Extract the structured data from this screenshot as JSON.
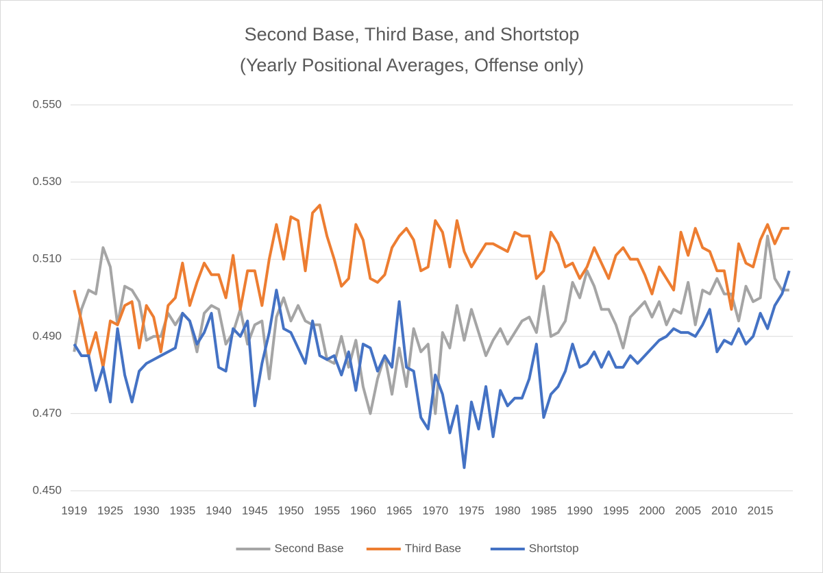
{
  "chart_data": {
    "type": "line",
    "title": "Second Base, Third Base, and Shortstop",
    "subtitle": "(Yearly Positional Averages, Offense only)",
    "categories": [
      "1919",
      null,
      null,
      null,
      null,
      "1925",
      null,
      null,
      null,
      null,
      "1930",
      null,
      null,
      null,
      null,
      "1935",
      null,
      null,
      null,
      null,
      "1940",
      null,
      null,
      null,
      null,
      "1945",
      null,
      null,
      null,
      null,
      "1950",
      null,
      null,
      null,
      null,
      "1955",
      null,
      null,
      null,
      null,
      "1960",
      null,
      null,
      null,
      null,
      "1965",
      null,
      null,
      null,
      null,
      "1970",
      null,
      null,
      null,
      null,
      "1975",
      null,
      null,
      null,
      null,
      "1980",
      null,
      null,
      null,
      null,
      "1985",
      null,
      null,
      null,
      null,
      "1990",
      null,
      null,
      null,
      null,
      "1995",
      null,
      null,
      null,
      null,
      "2000",
      null,
      null,
      null,
      null,
      "2005",
      null,
      null,
      null,
      null,
      "2010",
      null,
      null,
      null,
      null,
      "2015",
      null,
      null,
      null,
      null
    ],
    "series": [
      {
        "name": "Second Base",
        "color": "#a5a5a5",
        "values": [
          0.486,
          0.497,
          0.502,
          0.501,
          0.513,
          0.508,
          0.493,
          0.503,
          0.502,
          0.499,
          0.489,
          0.49,
          0.49,
          0.496,
          0.493,
          0.496,
          0.494,
          0.486,
          0.496,
          0.498,
          0.497,
          0.488,
          0.491,
          0.497,
          0.488,
          0.493,
          0.494,
          0.479,
          0.495,
          0.5,
          0.494,
          0.498,
          0.494,
          0.493,
          0.493,
          0.484,
          0.483,
          0.49,
          0.482,
          0.489,
          0.477,
          0.47,
          0.479,
          0.485,
          0.475,
          0.487,
          0.477,
          0.492,
          0.486,
          0.488,
          0.47,
          0.491,
          0.487,
          0.498,
          0.489,
          0.497,
          0.491,
          0.485,
          0.489,
          0.492,
          0.488,
          0.491,
          0.494,
          0.495,
          0.491,
          0.503,
          0.49,
          0.491,
          0.494,
          0.504,
          0.5,
          0.507,
          0.503,
          0.497,
          0.497,
          0.493,
          0.487,
          0.495,
          0.497,
          0.499,
          0.495,
          0.499,
          0.493,
          0.497,
          0.496,
          0.504,
          0.493,
          0.502,
          0.501,
          0.505,
          0.501,
          0.501,
          0.494,
          0.503,
          0.499,
          0.5,
          0.516,
          0.505,
          0.502,
          0.502
        ]
      },
      {
        "name": "Third Base",
        "color": "#ed7d31",
        "values": [
          0.502,
          0.494,
          0.485,
          0.491,
          0.482,
          0.494,
          0.493,
          0.498,
          0.499,
          0.487,
          0.498,
          0.495,
          0.486,
          0.498,
          0.5,
          0.509,
          0.498,
          0.504,
          0.509,
          0.506,
          0.506,
          0.5,
          0.511,
          0.497,
          0.507,
          0.507,
          0.498,
          0.51,
          0.519,
          0.51,
          0.521,
          0.52,
          0.507,
          0.522,
          0.524,
          0.516,
          0.51,
          0.503,
          0.505,
          0.519,
          0.515,
          0.505,
          0.504,
          0.506,
          0.513,
          0.516,
          0.518,
          0.515,
          0.507,
          0.508,
          0.52,
          0.517,
          0.508,
          0.52,
          0.512,
          0.508,
          0.511,
          0.514,
          0.514,
          0.513,
          0.512,
          0.517,
          0.516,
          0.516,
          0.505,
          0.507,
          0.517,
          0.514,
          0.508,
          0.509,
          0.505,
          0.508,
          0.513,
          0.509,
          0.505,
          0.511,
          0.513,
          0.51,
          0.51,
          0.506,
          0.501,
          0.508,
          0.505,
          0.502,
          0.517,
          0.511,
          0.518,
          0.513,
          0.512,
          0.507,
          0.507,
          0.497,
          0.514,
          0.509,
          0.508,
          0.515,
          0.519,
          0.514,
          0.518,
          0.518
        ]
      },
      {
        "name": "Shortstop",
        "color": "#4472c4",
        "values": [
          0.488,
          0.485,
          0.485,
          0.476,
          0.482,
          0.473,
          0.492,
          0.48,
          0.473,
          0.481,
          0.483,
          0.484,
          0.485,
          0.486,
          0.487,
          0.496,
          0.494,
          0.488,
          0.491,
          0.496,
          0.482,
          0.481,
          0.492,
          0.49,
          0.494,
          0.472,
          0.483,
          0.491,
          0.502,
          0.492,
          0.491,
          0.487,
          0.483,
          0.494,
          0.485,
          0.484,
          0.485,
          0.48,
          0.486,
          0.476,
          0.488,
          0.487,
          0.481,
          0.485,
          0.482,
          0.499,
          0.482,
          0.481,
          0.469,
          0.466,
          0.48,
          0.475,
          0.465,
          0.472,
          0.456,
          0.473,
          0.466,
          0.477,
          0.464,
          0.476,
          0.472,
          0.474,
          0.474,
          0.479,
          0.488,
          0.469,
          0.475,
          0.477,
          0.481,
          0.488,
          0.482,
          0.483,
          0.486,
          0.482,
          0.486,
          0.482,
          0.482,
          0.485,
          0.483,
          0.485,
          0.487,
          0.489,
          0.49,
          0.492,
          0.491,
          0.491,
          0.49,
          0.493,
          0.497,
          0.486,
          0.489,
          0.488,
          0.492,
          0.488,
          0.49,
          0.496,
          0.492,
          0.498,
          0.501,
          0.507
        ]
      }
    ],
    "ylim": [
      0.45,
      0.55
    ],
    "yticks": [
      {
        "value": 0.45,
        "label": "0.450"
      },
      {
        "value": 0.47,
        "label": "0.470"
      },
      {
        "value": 0.49,
        "label": "0.490"
      },
      {
        "value": 0.51,
        "label": "0.510"
      },
      {
        "value": 0.53,
        "label": "0.530"
      },
      {
        "value": 0.55,
        "label": "0.550"
      }
    ],
    "grid": true,
    "legend": "bottom"
  }
}
